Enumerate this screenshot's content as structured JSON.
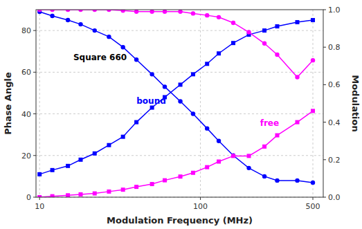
{
  "chart_data": {
    "type": "line",
    "xlabel": "Modulation Frequency (MHz)",
    "ylabel": "Phase Angle",
    "y2label": "Modulation",
    "log": "x",
    "grid": true,
    "xlim": [
      9.5,
      580
    ],
    "xticks": [
      10,
      100,
      500
    ],
    "ylim": [
      0,
      90
    ],
    "yticks": [
      0,
      20,
      40,
      60,
      80
    ],
    "y2lim": [
      0.0,
      1.0
    ],
    "y2ticks": [
      {
        "value": 0.0,
        "label": "0.0"
      },
      0.2,
      0.4,
      0.6,
      0.8,
      {
        "value": 1.0,
        "label": "1.0"
      }
    ],
    "x": [
      10,
      12,
      15,
      18,
      22,
      27,
      33,
      40,
      50,
      60,
      75,
      90,
      110,
      130,
      160,
      200,
      250,
      300,
      400,
      500
    ],
    "series": [
      {
        "color": "#0000FF",
        "marker": "circle",
        "values": [
          89,
          87,
          85,
          83,
          80,
          77,
          72,
          66,
          59,
          53,
          46,
          40,
          33,
          27,
          20,
          14,
          10,
          8,
          8,
          7
        ]
      },
      {
        "color": "#0000FF",
        "marker": "square",
        "values": [
          11,
          13,
          15,
          18,
          21,
          25,
          29,
          36,
          43,
          48,
          54,
          59,
          64,
          69,
          74,
          78,
          80,
          82,
          84,
          85
        ]
      },
      {
        "color": "#FF00FF",
        "marker": "circle",
        "axis": "y2",
        "values": [
          1.0,
          1.0,
          1.0,
          1.0,
          1.0,
          1.0,
          0.995,
          0.99,
          0.99,
          0.99,
          0.99,
          0.98,
          0.97,
          0.96,
          0.93,
          0.88,
          0.82,
          0.76,
          0.64,
          0.73
        ]
      },
      {
        "color": "#FF00FF",
        "marker": "square",
        "axis": "y2",
        "values": [
          0.0,
          0.005,
          0.01,
          0.015,
          0.02,
          0.03,
          0.04,
          0.055,
          0.07,
          0.09,
          0.11,
          0.13,
          0.16,
          0.19,
          0.22,
          0.22,
          0.27,
          0.33,
          0.4,
          0.46
        ]
      }
    ],
    "annotations": [
      {
        "text": "Square 660"
      },
      {
        "text": "bound",
        "color": "#0000FF"
      },
      {
        "text": "free",
        "color": "#FF00FF"
      }
    ]
  }
}
